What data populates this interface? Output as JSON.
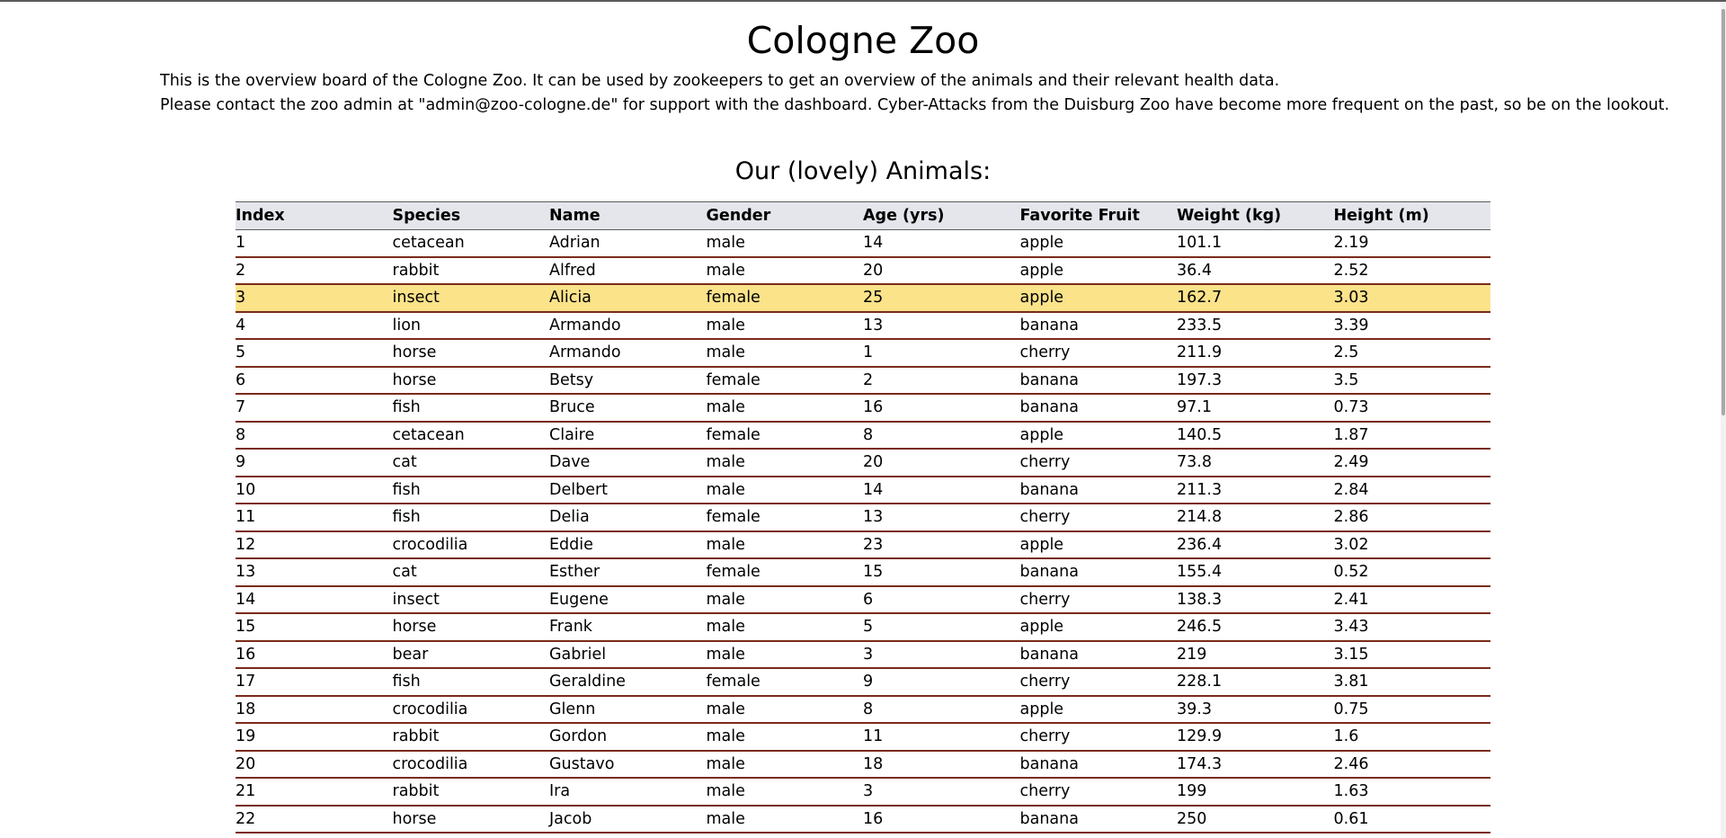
{
  "page": {
    "title": "Cologne Zoo",
    "intro_line_1": "This is the overview board of the Cologne Zoo. It can be used by zookeepers to get an overview of the animals and their relevant health data.",
    "intro_line_2": "Please contact the zoo admin at \"admin@zoo-cologne.de\" for support with the dashboard. Cyber-Attacks from the Duisburg Zoo have become more frequent on the past, so be on the lookout.",
    "section_title": "Our (lovely) Animals:"
  },
  "colors": {
    "header_background": "#e4e6ec",
    "row_divider": "#7a2a1a",
    "highlight_row": "#fbe38a"
  },
  "highlighted_row_index": 2,
  "table": {
    "columns": [
      "Index",
      "Species",
      "Name",
      "Gender",
      "Age (yrs)",
      "Favorite Fruit",
      "Weight (kg)",
      "Height (m)"
    ],
    "rows": [
      [
        "1",
        "cetacean",
        "Adrian",
        "male",
        "14",
        "apple",
        "101.1",
        "2.19"
      ],
      [
        "2",
        "rabbit",
        "Alfred",
        "male",
        "20",
        "apple",
        "36.4",
        "2.52"
      ],
      [
        "3",
        "insect",
        "Alicia",
        "female",
        "25",
        "apple",
        "162.7",
        "3.03"
      ],
      [
        "4",
        "lion",
        "Armando",
        "male",
        "13",
        "banana",
        "233.5",
        "3.39"
      ],
      [
        "5",
        "horse",
        "Armando",
        "male",
        "1",
        "cherry",
        "211.9",
        "2.5"
      ],
      [
        "6",
        "horse",
        "Betsy",
        "female",
        "2",
        "banana",
        "197.3",
        "3.5"
      ],
      [
        "7",
        "fish",
        "Bruce",
        "male",
        "16",
        "banana",
        "97.1",
        "0.73"
      ],
      [
        "8",
        "cetacean",
        "Claire",
        "female",
        "8",
        "apple",
        "140.5",
        "1.87"
      ],
      [
        "9",
        "cat",
        "Dave",
        "male",
        "20",
        "cherry",
        "73.8",
        "2.49"
      ],
      [
        "10",
        "fish",
        "Delbert",
        "male",
        "14",
        "banana",
        "211.3",
        "2.84"
      ],
      [
        "11",
        "fish",
        "Delia",
        "female",
        "13",
        "cherry",
        "214.8",
        "2.86"
      ],
      [
        "12",
        "crocodilia",
        "Eddie",
        "male",
        "23",
        "apple",
        "236.4",
        "3.02"
      ],
      [
        "13",
        "cat",
        "Esther",
        "female",
        "15",
        "banana",
        "155.4",
        "0.52"
      ],
      [
        "14",
        "insect",
        "Eugene",
        "male",
        "6",
        "cherry",
        "138.3",
        "2.41"
      ],
      [
        "15",
        "horse",
        "Frank",
        "male",
        "5",
        "apple",
        "246.5",
        "3.43"
      ],
      [
        "16",
        "bear",
        "Gabriel",
        "male",
        "3",
        "banana",
        "219",
        "3.15"
      ],
      [
        "17",
        "fish",
        "Geraldine",
        "female",
        "9",
        "cherry",
        "228.1",
        "3.81"
      ],
      [
        "18",
        "crocodilia",
        "Glenn",
        "male",
        "8",
        "apple",
        "39.3",
        "0.75"
      ],
      [
        "19",
        "rabbit",
        "Gordon",
        "male",
        "11",
        "cherry",
        "129.9",
        "1.6"
      ],
      [
        "20",
        "crocodilia",
        "Gustavo",
        "male",
        "18",
        "banana",
        "174.3",
        "2.46"
      ],
      [
        "21",
        "rabbit",
        "Ira",
        "male",
        "3",
        "cherry",
        "199",
        "1.63"
      ],
      [
        "22",
        "horse",
        "Jacob",
        "male",
        "16",
        "banana",
        "250",
        "0.61"
      ]
    ]
  }
}
